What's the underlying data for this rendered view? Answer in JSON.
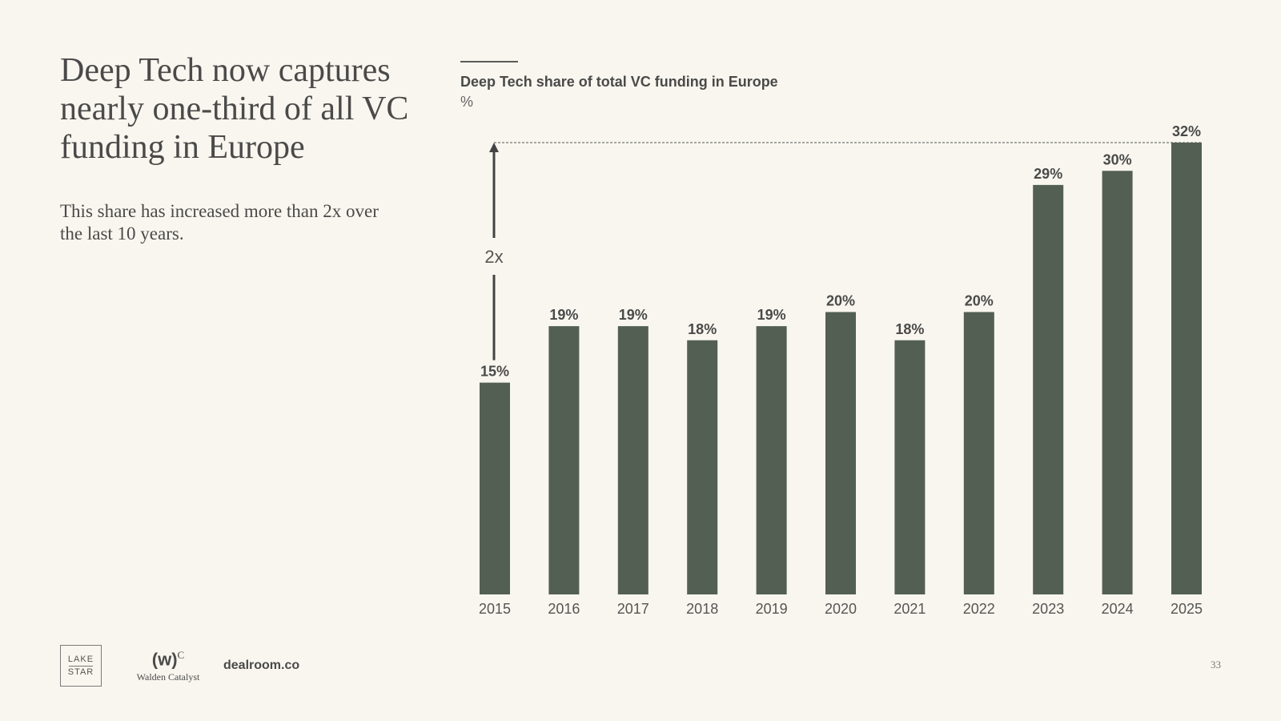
{
  "headline": "Deep Tech now captures nearly one-third of all VC funding in Europe",
  "subtitle": "This share has increased more than 2x over the last 10 years.",
  "chart_data": {
    "type": "bar",
    "title": "Deep Tech share of total VC funding in Europe",
    "unit": "%",
    "categories": [
      "2015",
      "2016",
      "2017",
      "2018",
      "2019",
      "2020",
      "2021",
      "2022",
      "2023",
      "2024",
      "2025"
    ],
    "values": [
      15,
      19,
      19,
      18,
      19,
      20,
      18,
      20,
      29,
      30,
      32
    ],
    "value_labels": [
      "15%",
      "19%",
      "19%",
      "18%",
      "19%",
      "20%",
      "18%",
      "20%",
      "29%",
      "30%",
      "32%"
    ],
    "ylim": [
      0,
      32
    ],
    "grid": false,
    "bar_color": "#535f53",
    "annotation": {
      "label": "2x",
      "from_value": 15,
      "to_value": 32
    }
  },
  "footer": {
    "logos": {
      "lakestar_top": "LAKE",
      "lakestar_bottom": "STAR",
      "walden_mark": "(w)",
      "walden_sup": "C",
      "walden_name": "Walden Catalyst",
      "dealroom": "dealroom.co"
    },
    "page_number": "33"
  }
}
